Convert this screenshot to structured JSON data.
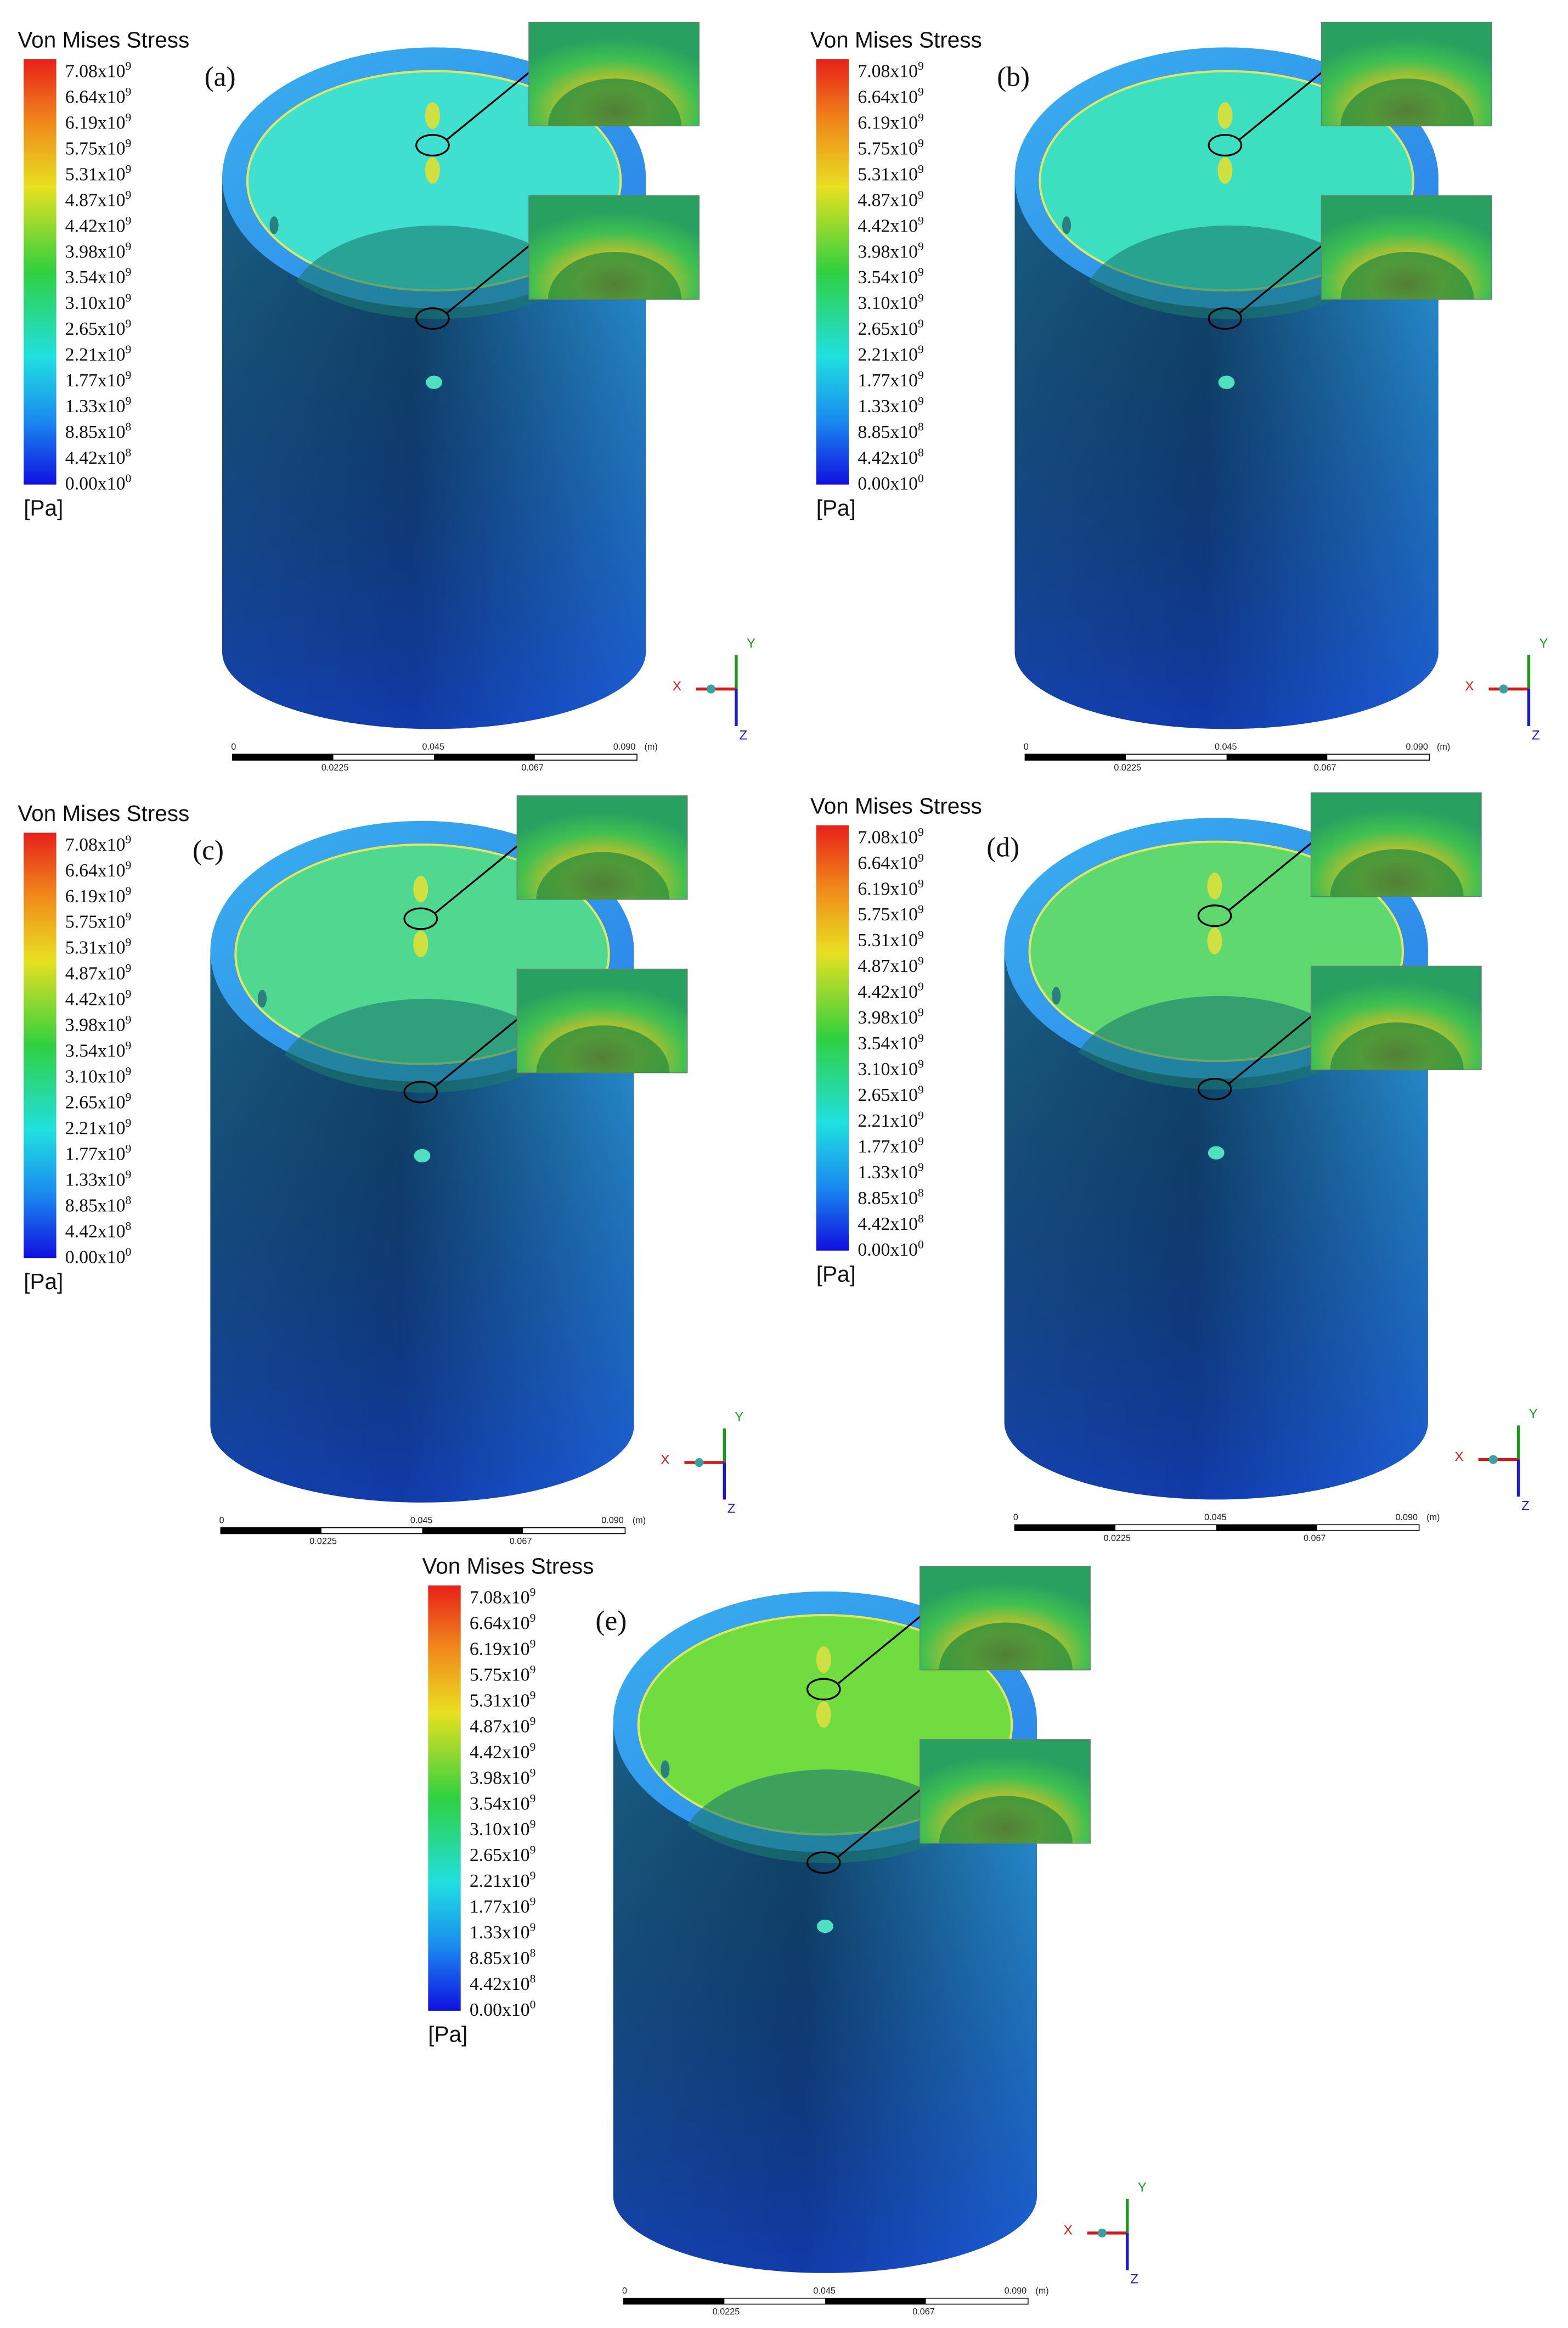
{
  "panels": [
    {
      "label": "(a)",
      "legend": {
        "title": "Von Mises Stress",
        "labels": [
          {
            "base": "7.08x10",
            "exp": "9"
          },
          {
            "base": "6.64x10",
            "exp": "9"
          },
          {
            "base": "6.19x10",
            "exp": "9"
          },
          {
            "base": "5.75x10",
            "exp": "9"
          },
          {
            "base": "5.31x10",
            "exp": "9"
          },
          {
            "base": "4.87x10",
            "exp": "9"
          },
          {
            "base": "4.42x10",
            "exp": "9"
          },
          {
            "base": "3.98x10",
            "exp": "9"
          },
          {
            "base": "3.54x10",
            "exp": "9"
          },
          {
            "base": "3.10x10",
            "exp": "9"
          },
          {
            "base": "2.65x10",
            "exp": "9"
          },
          {
            "base": "2.21x10",
            "exp": "9"
          },
          {
            "base": "1.77x10",
            "exp": "9"
          },
          {
            "base": "1.33x10",
            "exp": "9"
          },
          {
            "base": "8.85x10",
            "exp": "8"
          },
          {
            "base": "4.42x10",
            "exp": "8"
          },
          {
            "base": "0.00x10",
            "exp": "0"
          }
        ],
        "unit": "[Pa]"
      },
      "scale_bar": {
        "top": [
          "0",
          "0.045",
          "0.090",
          "(m)"
        ],
        "bottom": [
          "0.0225",
          "0.067"
        ]
      },
      "axes": {
        "x": "X",
        "y": "Y",
        "z": "Z"
      }
    },
    {
      "label": "(b)",
      "legend": {
        "title": "Von Mises Stress",
        "labels": [
          {
            "base": "7.08x10",
            "exp": "9"
          },
          {
            "base": "6.64x10",
            "exp": "9"
          },
          {
            "base": "6.19x10",
            "exp": "9"
          },
          {
            "base": "5.75x10",
            "exp": "9"
          },
          {
            "base": "5.31x10",
            "exp": "9"
          },
          {
            "base": "4.87x10",
            "exp": "9"
          },
          {
            "base": "4.42x10",
            "exp": "9"
          },
          {
            "base": "3.98x10",
            "exp": "9"
          },
          {
            "base": "3.54x10",
            "exp": "9"
          },
          {
            "base": "3.10x10",
            "exp": "9"
          },
          {
            "base": "2.65x10",
            "exp": "9"
          },
          {
            "base": "2.21x10",
            "exp": "9"
          },
          {
            "base": "1.77x10",
            "exp": "9"
          },
          {
            "base": "1.33x10",
            "exp": "9"
          },
          {
            "base": "8.85x10",
            "exp": "8"
          },
          {
            "base": "4.42x10",
            "exp": "8"
          },
          {
            "base": "0.00x10",
            "exp": "0"
          }
        ],
        "unit": "[Pa]"
      },
      "scale_bar": {
        "top": [
          "0",
          "0.045",
          "0.090",
          "(m)"
        ],
        "bottom": [
          "0.0225",
          "0.067"
        ]
      },
      "axes": {
        "x": "X",
        "y": "Y",
        "z": "Z"
      }
    },
    {
      "label": "(c)",
      "legend": {
        "title": "Von Mises Stress",
        "labels": [
          {
            "base": "7.08x10",
            "exp": "9"
          },
          {
            "base": "6.64x10",
            "exp": "9"
          },
          {
            "base": "6.19x10",
            "exp": "9"
          },
          {
            "base": "5.75x10",
            "exp": "9"
          },
          {
            "base": "5.31x10",
            "exp": "9"
          },
          {
            "base": "4.87x10",
            "exp": "9"
          },
          {
            "base": "4.42x10",
            "exp": "9"
          },
          {
            "base": "3.98x10",
            "exp": "9"
          },
          {
            "base": "3.54x10",
            "exp": "9"
          },
          {
            "base": "3.10x10",
            "exp": "9"
          },
          {
            "base": "2.65x10",
            "exp": "9"
          },
          {
            "base": "2.21x10",
            "exp": "9"
          },
          {
            "base": "1.77x10",
            "exp": "9"
          },
          {
            "base": "1.33x10",
            "exp": "9"
          },
          {
            "base": "8.85x10",
            "exp": "8"
          },
          {
            "base": "4.42x10",
            "exp": "8"
          },
          {
            "base": "0.00x10",
            "exp": "0"
          }
        ],
        "unit": "[Pa]"
      },
      "scale_bar": {
        "top": [
          "0",
          "0.045",
          "0.090",
          "(m)"
        ],
        "bottom": [
          "0.0225",
          "0.067"
        ]
      },
      "axes": {
        "x": "X",
        "y": "Y",
        "z": "Z"
      }
    },
    {
      "label": "(d)",
      "legend": {
        "title": "Von Mises Stress",
        "labels": [
          {
            "base": "7.08x10",
            "exp": "9"
          },
          {
            "base": "6.64x10",
            "exp": "9"
          },
          {
            "base": "6.19x10",
            "exp": "9"
          },
          {
            "base": "5.75x10",
            "exp": "9"
          },
          {
            "base": "5.31x10",
            "exp": "9"
          },
          {
            "base": "4.87x10",
            "exp": "9"
          },
          {
            "base": "4.42x10",
            "exp": "9"
          },
          {
            "base": "3.98x10",
            "exp": "9"
          },
          {
            "base": "3.54x10",
            "exp": "9"
          },
          {
            "base": "3.10x10",
            "exp": "9"
          },
          {
            "base": "2.65x10",
            "exp": "9"
          },
          {
            "base": "2.21x10",
            "exp": "9"
          },
          {
            "base": "1.77x10",
            "exp": "9"
          },
          {
            "base": "1.33x10",
            "exp": "9"
          },
          {
            "base": "8.85x10",
            "exp": "8"
          },
          {
            "base": "4.42x10",
            "exp": "8"
          },
          {
            "base": "0.00x10",
            "exp": "0"
          }
        ],
        "unit": "[Pa]"
      },
      "scale_bar": {
        "top": [
          "0",
          "0.045",
          "0.090",
          "(m)"
        ],
        "bottom": [
          "0.0225",
          "0.067"
        ]
      },
      "axes": {
        "x": "X",
        "y": "Y",
        "z": "Z"
      }
    },
    {
      "label": "(e)",
      "legend": {
        "title": "Von Mises Stress",
        "labels": [
          {
            "base": "7.08x10",
            "exp": "9"
          },
          {
            "base": "6.64x10",
            "exp": "9"
          },
          {
            "base": "6.19x10",
            "exp": "9"
          },
          {
            "base": "5.75x10",
            "exp": "9"
          },
          {
            "base": "5.31x10",
            "exp": "9"
          },
          {
            "base": "4.87x10",
            "exp": "9"
          },
          {
            "base": "4.42x10",
            "exp": "9"
          },
          {
            "base": "3.98x10",
            "exp": "9"
          },
          {
            "base": "3.54x10",
            "exp": "9"
          },
          {
            "base": "3.10x10",
            "exp": "9"
          },
          {
            "base": "2.65x10",
            "exp": "9"
          },
          {
            "base": "2.21x10",
            "exp": "9"
          },
          {
            "base": "1.77x10",
            "exp": "9"
          },
          {
            "base": "1.33x10",
            "exp": "9"
          },
          {
            "base": "8.85x10",
            "exp": "8"
          },
          {
            "base": "4.42x10",
            "exp": "8"
          },
          {
            "base": "0.00x10",
            "exp": "0"
          }
        ],
        "unit": "[Pa]"
      },
      "scale_bar": {
        "top": [
          "0",
          "0.045",
          "0.090",
          "(m)"
        ],
        "bottom": [
          "0.0225",
          "0.067"
        ]
      },
      "axes": {
        "x": "X",
        "y": "Y",
        "z": "Z"
      }
    }
  ]
}
